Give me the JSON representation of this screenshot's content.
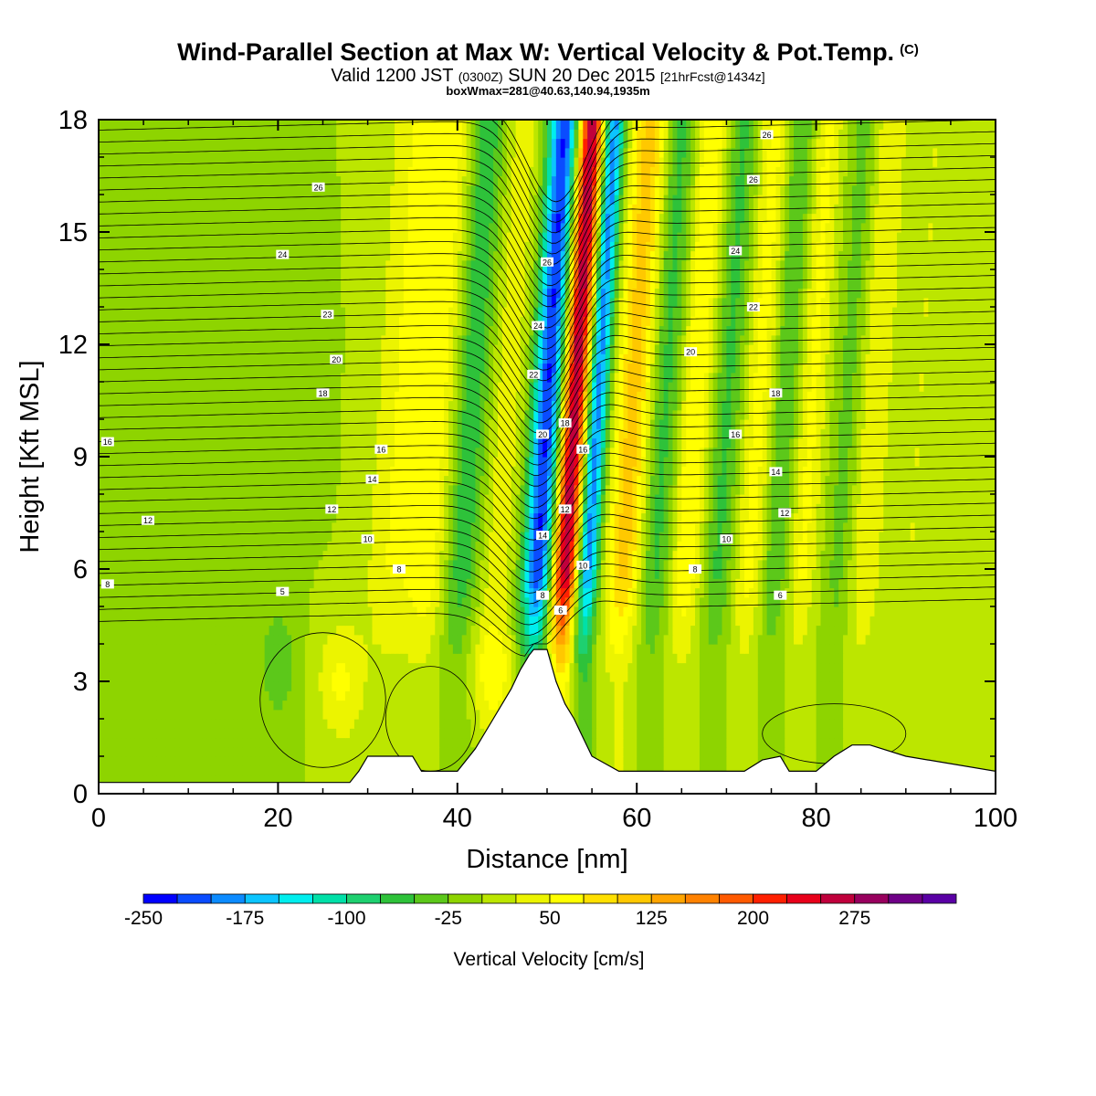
{
  "title": "Wind-Parallel Section at Max W: Vertical Velocity & Pot.Temp.",
  "copyright_mark": "(C)",
  "subtitle": {
    "valid_prefix": "Valid 1200 JST",
    "utc": "(0300Z)",
    "date": "SUN 20 Dec 2015",
    "forecast": "[21hrFcst@1434z]"
  },
  "box_info": "boxWmax=281@40.63,140.94,1935m",
  "colorbar": {
    "label": "Vertical Velocity [cm/s]",
    "tick_labels": [
      "-250",
      "-175",
      "-100",
      "-25",
      "50",
      "125",
      "200",
      "275"
    ],
    "tick_values": [
      -250,
      -175,
      -100,
      -25,
      50,
      125,
      200,
      275
    ],
    "levels_start": -250,
    "level_step": 25,
    "colors": [
      "#0000ff",
      "#0a4cff",
      "#0c8bff",
      "#0cc5ff",
      "#00eeee",
      "#00e0a8",
      "#1ed070",
      "#2ec23a",
      "#5cc81a",
      "#8ed400",
      "#bce600",
      "#ecf400",
      "#ffff00",
      "#ffe000",
      "#ffc800",
      "#ffa500",
      "#ff8200",
      "#ff5a00",
      "#ff2000",
      "#e8001a",
      "#c0003c",
      "#98005e",
      "#6f0087",
      "#5a00a5"
    ]
  },
  "chart_data": {
    "type": "heatmap",
    "xlabel": "Distance [nm]",
    "ylabel": "Height [Kft MSL]",
    "xlim": [
      0,
      100
    ],
    "ylim": [
      0,
      18
    ],
    "x_ticks": [
      0,
      20,
      40,
      60,
      80,
      100
    ],
    "y_ticks": [
      0,
      3,
      6,
      9,
      12,
      15,
      18
    ],
    "x_tick_labels": [
      "0",
      "20",
      "40",
      "60",
      "80",
      "100"
    ],
    "y_tick_labels": [
      "0",
      "3",
      "6",
      "9",
      "12",
      "15",
      "18"
    ],
    "fill_variable": "Vertical Velocity [cm/s]",
    "contour_variable": "Potential Temperature [C]",
    "velocity_bands": [
      {
        "x": 32,
        "width": 2.8,
        "value": 50
      },
      {
        "x": 36,
        "width": 2.2,
        "value": 65
      },
      {
        "x": 40,
        "width": 1.8,
        "value": -70
      },
      {
        "x": 44,
        "width": 1.8,
        "value": 40
      },
      {
        "x": 48.5,
        "width": 1.7,
        "value": -230
      },
      {
        "x": 51.5,
        "width": 1.5,
        "value": 280
      },
      {
        "x": 54,
        "width": 1.2,
        "value": -200
      },
      {
        "x": 58,
        "width": 2.0,
        "value": 110
      },
      {
        "x": 61.5,
        "width": 1.6,
        "value": -60
      },
      {
        "x": 65,
        "width": 1.6,
        "value": 75
      },
      {
        "x": 68.5,
        "width": 1.5,
        "value": -55
      },
      {
        "x": 72,
        "width": 1.5,
        "value": 60
      },
      {
        "x": 75,
        "width": 1.3,
        "value": -50
      },
      {
        "x": 78,
        "width": 1.5,
        "value": 55
      },
      {
        "x": 82,
        "width": 1.5,
        "value": -35
      },
      {
        "x": 85,
        "width": 1.8,
        "value": 50
      },
      {
        "x": 90,
        "width": 1.8,
        "value": 25
      }
    ],
    "low_level_blobs": [
      {
        "x": 27,
        "y": 3.0,
        "wx": 2.6,
        "wy": 1.6,
        "value": 55
      },
      {
        "x": 20,
        "y": 3.5,
        "wx": 2.2,
        "wy": 1.8,
        "value": -40
      },
      {
        "x": 44,
        "y": 3.2,
        "wx": 2.5,
        "wy": 1.5,
        "value": 60
      },
      {
        "x": 12,
        "y": 9.5,
        "wx": 8.0,
        "wy": 3.5,
        "value": -10
      }
    ],
    "terrain": {
      "x": [
        0,
        28,
        29,
        30,
        35,
        36,
        40,
        42,
        44,
        46,
        47,
        48,
        48.5,
        50,
        51,
        52,
        53,
        55,
        58,
        62,
        72,
        74,
        76,
        77,
        80,
        82,
        84,
        86,
        90,
        100
      ],
      "height_kft": [
        0.3,
        0.3,
        0.6,
        1.0,
        1.0,
        0.6,
        0.6,
        1.2,
        2.0,
        2.8,
        3.3,
        3.7,
        3.85,
        3.85,
        3.0,
        2.4,
        2.0,
        1.0,
        0.6,
        0.6,
        0.6,
        0.9,
        1.0,
        0.6,
        0.6,
        1.0,
        1.3,
        1.3,
        1.0,
        0.6
      ]
    },
    "pot_temp_contour_labels": [
      {
        "text": "26",
        "x": 24.5,
        "y": 16.2
      },
      {
        "text": "24",
        "x": 20.5,
        "y": 14.4
      },
      {
        "text": "23",
        "x": 25.5,
        "y": 12.8
      },
      {
        "text": "20",
        "x": 26.5,
        "y": 11.6
      },
      {
        "text": "18",
        "x": 25.0,
        "y": 10.7
      },
      {
        "text": "16",
        "x": 1.0,
        "y": 9.4
      },
      {
        "text": "16",
        "x": 31.5,
        "y": 9.2
      },
      {
        "text": "14",
        "x": 30.5,
        "y": 8.4
      },
      {
        "text": "12",
        "x": 5.5,
        "y": 7.3
      },
      {
        "text": "12",
        "x": 26.0,
        "y": 7.6
      },
      {
        "text": "10",
        "x": 30.0,
        "y": 6.8
      },
      {
        "text": "8",
        "x": 33.5,
        "y": 6.0
      },
      {
        "text": "8",
        "x": 1.0,
        "y": 5.6
      },
      {
        "text": "5",
        "x": 20.5,
        "y": 5.4
      },
      {
        "text": "26",
        "x": 50.0,
        "y": 14.2
      },
      {
        "text": "24",
        "x": 49.0,
        "y": 12.5
      },
      {
        "text": "22",
        "x": 48.5,
        "y": 11.2
      },
      {
        "text": "20",
        "x": 49.5,
        "y": 9.6
      },
      {
        "text": "18",
        "x": 52.0,
        "y": 9.9
      },
      {
        "text": "16",
        "x": 54.0,
        "y": 9.2
      },
      {
        "text": "14",
        "x": 49.5,
        "y": 6.9
      },
      {
        "text": "12",
        "x": 52.0,
        "y": 7.6
      },
      {
        "text": "10",
        "x": 54.0,
        "y": 6.1
      },
      {
        "text": "8",
        "x": 49.5,
        "y": 5.3
      },
      {
        "text": "6",
        "x": 51.5,
        "y": 4.9
      },
      {
        "text": "26",
        "x": 74.5,
        "y": 17.6
      },
      {
        "text": "26",
        "x": 73.0,
        "y": 16.4
      },
      {
        "text": "24",
        "x": 71.0,
        "y": 14.5
      },
      {
        "text": "22",
        "x": 73.0,
        "y": 13.0
      },
      {
        "text": "20",
        "x": 66.0,
        "y": 11.8
      },
      {
        "text": "18",
        "x": 75.5,
        "y": 10.7
      },
      {
        "text": "16",
        "x": 71.0,
        "y": 9.6
      },
      {
        "text": "14",
        "x": 75.5,
        "y": 8.6
      },
      {
        "text": "12",
        "x": 76.5,
        "y": 7.5
      },
      {
        "text": "10",
        "x": 70.0,
        "y": 6.8
      },
      {
        "text": "8",
        "x": 66.5,
        "y": 6.0
      },
      {
        "text": "6",
        "x": 76.0,
        "y": 5.3
      }
    ]
  }
}
